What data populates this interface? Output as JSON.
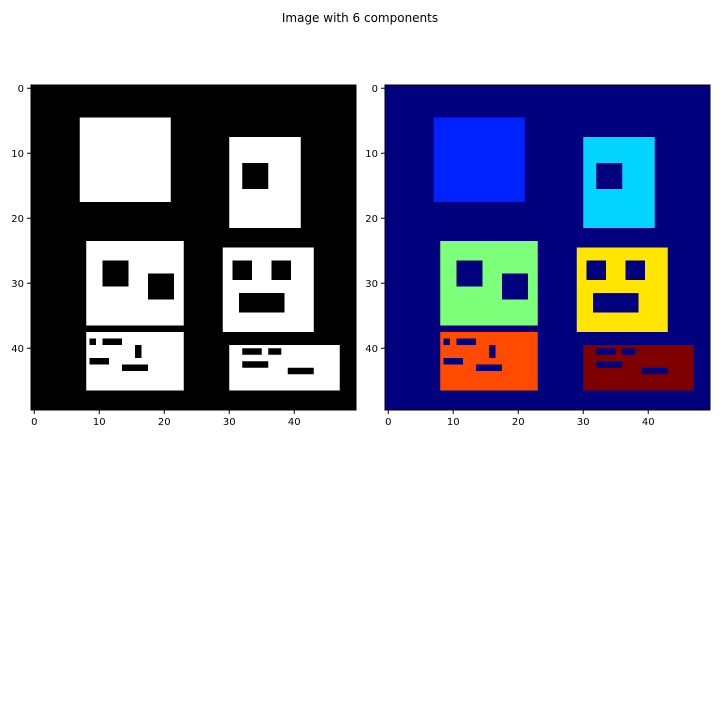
{
  "title": "Image with 6 components",
  "chart_data": [
    {
      "type": "heatmap",
      "panel": "binary",
      "colormap": "gray",
      "background": "#000000",
      "foreground": "#ffffff",
      "xlim": [
        0,
        50
      ],
      "ylim": [
        50,
        0
      ],
      "xticks": [
        0,
        10,
        20,
        30,
        40
      ],
      "yticks": [
        0,
        10,
        20,
        30,
        40
      ],
      "components": [
        {
          "label": 1,
          "x": [
            7,
            21
          ],
          "y": [
            4.5,
            17.5
          ],
          "holes": []
        },
        {
          "label": 2,
          "x": [
            30,
            41
          ],
          "y": [
            7.5,
            21.5
          ],
          "holes": [
            [
              32,
              36,
              11.5,
              15.5
            ]
          ]
        },
        {
          "label": 3,
          "x": [
            8,
            23
          ],
          "y": [
            23.5,
            36.5
          ],
          "holes": [
            [
              10.5,
              14.5,
              26.5,
              30.5
            ],
            [
              17.5,
              21.5,
              28.5,
              32.5
            ]
          ]
        },
        {
          "label": 4,
          "x": [
            29,
            43
          ],
          "y": [
            24.5,
            37.5
          ],
          "holes": [
            [
              30.5,
              33.5,
              26.5,
              29.5
            ],
            [
              36.5,
              39.5,
              26.5,
              29.5
            ],
            [
              31.5,
              38.5,
              31.5,
              34.5
            ]
          ]
        },
        {
          "label": 5,
          "x": [
            8,
            23
          ],
          "y": [
            37.5,
            46.5
          ],
          "holes": [
            [
              8.5,
              9.5,
              38.5,
              39.5
            ],
            [
              10.5,
              13.5,
              38.5,
              39.5
            ],
            [
              15.5,
              16.5,
              39.5,
              41.5
            ],
            [
              8.5,
              11.5,
              41.5,
              42.5
            ],
            [
              13.5,
              17.5,
              42.5,
              43.5
            ]
          ]
        },
        {
          "label": 6,
          "x": [
            30,
            47
          ],
          "y": [
            39.5,
            46.5
          ],
          "holes": [
            [
              32,
              35,
              40,
              41
            ],
            [
              36,
              38,
              40,
              41
            ],
            [
              32,
              36,
              42,
              43
            ],
            [
              39,
              43,
              43,
              44
            ]
          ]
        }
      ]
    },
    {
      "type": "heatmap",
      "panel": "labels",
      "colormap": "jet",
      "background": "#00007f",
      "label_colors": [
        "#0022ff",
        "#00d4ff",
        "#7dff7a",
        "#ffe500",
        "#ff4a00",
        "#7f0000"
      ],
      "xlim": [
        0,
        50
      ],
      "ylim": [
        50,
        0
      ],
      "xticks": [
        0,
        10,
        20,
        30,
        40
      ],
      "yticks": [
        0,
        10,
        20,
        30,
        40
      ],
      "components_from": "binary"
    }
  ]
}
